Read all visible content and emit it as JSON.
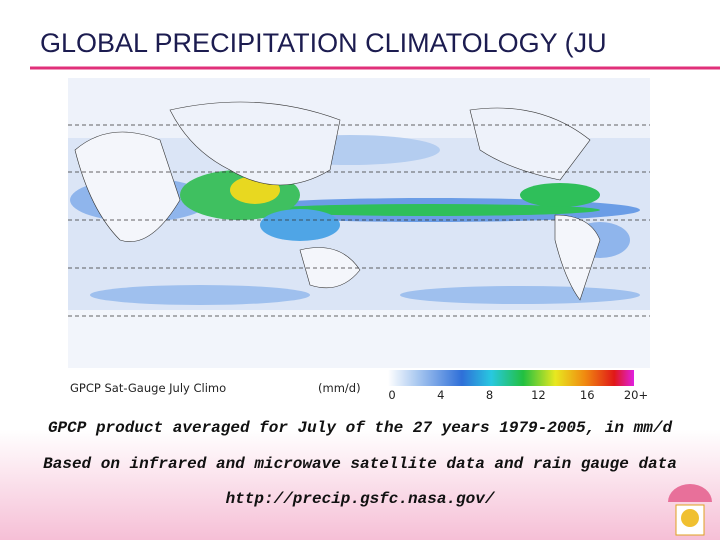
{
  "title": "GLOBAL PRECIPITATION CLIMATOLOGY (JU",
  "figure": {
    "caption": "GPCP Sat-Gauge July Climo",
    "units": "(mm/d)",
    "colorbar_labels": [
      "0",
      "4",
      "8",
      "12",
      "16",
      "20+"
    ]
  },
  "body": [
    "GPCP product averaged for July of the 27 years 1979-2005, in mm/d",
    "Based on infrared and microwave satellite data and rain gauge data",
    "http://precip.gsfc.nasa.gov/"
  ]
}
